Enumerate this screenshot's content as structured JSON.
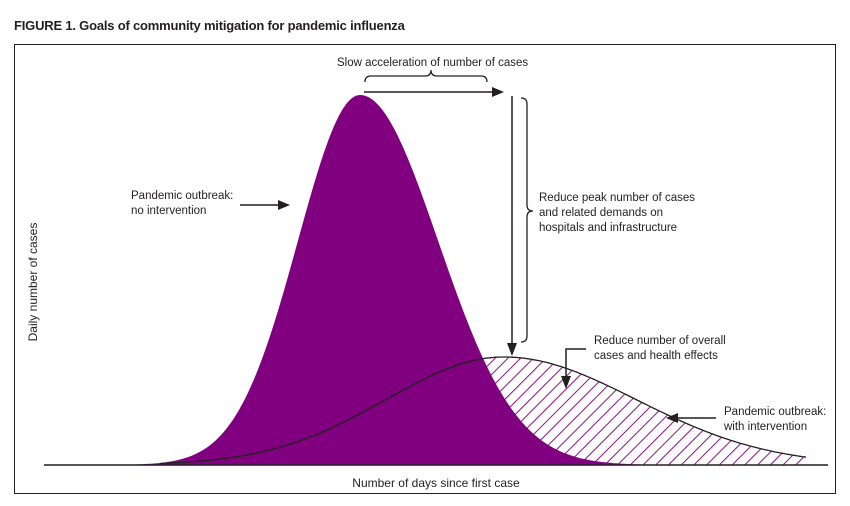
{
  "figure": {
    "title": "FIGURE 1. Goals of community mitigation for pandemic influenza"
  },
  "axes": {
    "xlabel": "Number of days since first case",
    "ylabel": "Daily number of cases"
  },
  "annotations": {
    "slow_acceleration": "Slow acceleration of number of cases",
    "no_intervention": "Pandemic outbreak:\nno intervention",
    "reduce_peak": "Reduce peak number of cases\nand related demands on\nhospitals and infrastructure",
    "reduce_overall": "Reduce number of overall\ncases and health effects",
    "with_intervention": "Pandemic outbreak:\nwith intervention"
  },
  "colors": {
    "no_intervention_fill": "#800080",
    "hatch": "#800080",
    "ink": "#231f20"
  }
}
